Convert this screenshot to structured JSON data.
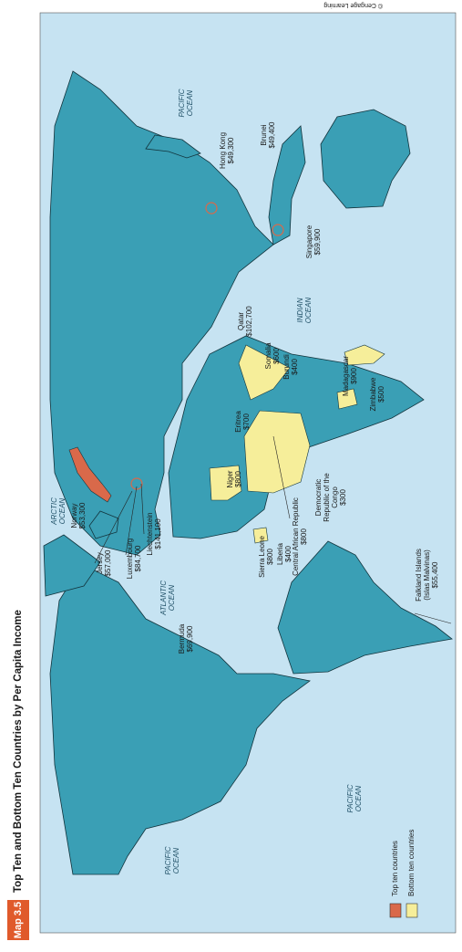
{
  "title_badge": "Map 3.5",
  "title": "Top Ten and Bottom Ten Countries by Per Capita Income",
  "credit": "© Cengage Learning",
  "oceans": [
    {
      "lines": [
        "ARCTIC",
        "OCEAN"
      ]
    },
    {
      "lines": [
        "ATLANTIC",
        "OCEAN"
      ]
    },
    {
      "lines": [
        "PACIFIC",
        "OCEAN"
      ]
    },
    {
      "lines": [
        "INDIAN",
        "OCEAN"
      ]
    },
    {
      "lines": [
        "PACIFIC",
        "OCEAN"
      ]
    },
    {
      "lines": [
        "PACIFIC",
        "OCEAN"
      ]
    }
  ],
  "top_ten": [
    {
      "name": [
        "Norway"
      ],
      "income": "$53,300"
    },
    {
      "name": [
        "Jersey"
      ],
      "income": "$57,000"
    },
    {
      "name": [
        "Luxembourg"
      ],
      "income": "$84,700"
    },
    {
      "name": [
        "Liechtenstein"
      ],
      "income": "$141,100"
    },
    {
      "name": [
        "Bermuda"
      ],
      "income": "$69,900"
    },
    {
      "name": [
        "Qatar"
      ],
      "income": "$102,700"
    },
    {
      "name": [
        "Hong Kong"
      ],
      "income": "$49,300"
    },
    {
      "name": [
        "Brunei"
      ],
      "income": "$49,400"
    },
    {
      "name": [
        "Singapore"
      ],
      "income": "$59,900"
    },
    {
      "name": [
        "Falkland Islands",
        "(Islas Malvinas)"
      ],
      "income": "$55,400"
    }
  ],
  "bottom_ten": [
    {
      "name": [
        "Somalia"
      ],
      "income": "$600"
    },
    {
      "name": [
        "Burundi"
      ],
      "income": "$400"
    },
    {
      "name": [
        "Madagascar"
      ],
      "income": "$900"
    },
    {
      "name": [
        "Zimbabwe"
      ],
      "income": "$500"
    },
    {
      "name": [
        "Eritrea"
      ],
      "income": "$700"
    },
    {
      "name": [
        "Niger"
      ],
      "income": "$800"
    },
    {
      "name": [
        "Democratic",
        "Republic of the",
        "Congo"
      ],
      "income": "$300"
    },
    {
      "name": [
        "Central African Republic"
      ],
      "income": "$800"
    },
    {
      "name": [
        "Liberia"
      ],
      "income": "$400"
    },
    {
      "name": [
        "Sierra Leone"
      ],
      "income": "$800"
    }
  ],
  "legend": [
    {
      "label": "Top ten countries",
      "color": "#d9694a"
    },
    {
      "label": "Bottom ten countries",
      "color": "#f6ee9a"
    }
  ]
}
